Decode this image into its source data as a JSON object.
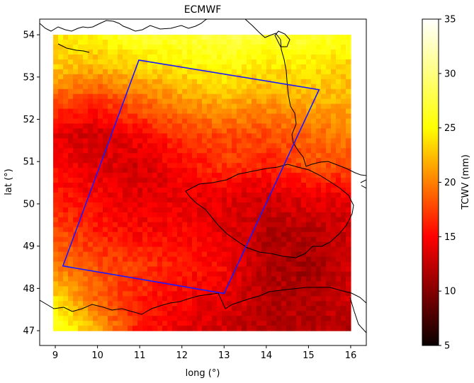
{
  "chart_data": {
    "type": "heatmap",
    "title": "ECMWF",
    "xlabel": "long (°)",
    "ylabel": "lat (°)",
    "xlim": [
      8.63,
      16.37
    ],
    "ylim": [
      46.65,
      54.37
    ],
    "data_extent": {
      "lon": [
        8.95,
        16.0
      ],
      "lat": [
        47.0,
        54.0
      ]
    },
    "x_ticks": [
      9,
      10,
      11,
      12,
      13,
      14,
      15,
      16
    ],
    "y_ticks": [
      47,
      48,
      49,
      50,
      51,
      52,
      53,
      54
    ],
    "grid": false,
    "colorbar": {
      "label": "TCWV (mm)",
      "range": [
        5,
        35
      ],
      "ticks": [
        5,
        10,
        15,
        20,
        25,
        30,
        35
      ],
      "colormap": "hot"
    },
    "field_tcwv_mm": [
      [
        24,
        25,
        27,
        27,
        28,
        27,
        27,
        26
      ],
      [
        23,
        22,
        23,
        24,
        25,
        24,
        24,
        23
      ],
      [
        18,
        17,
        19,
        21,
        22,
        21,
        22,
        22
      ],
      [
        14,
        13,
        15,
        17,
        18,
        18,
        19,
        20
      ],
      [
        15,
        14,
        13,
        15,
        17,
        16,
        18,
        18
      ],
      [
        16,
        15,
        14,
        14,
        14,
        13,
        14,
        14
      ],
      [
        18,
        16,
        15,
        15,
        14,
        12,
        12,
        13
      ],
      [
        20,
        18,
        17,
        16,
        15,
        12,
        11,
        13
      ],
      [
        24,
        19,
        16,
        15,
        14,
        12,
        12,
        13
      ],
      [
        27,
        22,
        16,
        14,
        13,
        12,
        12,
        12
      ]
    ],
    "swath_polygon": [
      {
        "lon": 10.98,
        "lat": 53.4
      },
      {
        "lon": 15.25,
        "lat": 52.7
      },
      {
        "lon": 13.0,
        "lat": 47.88
      },
      {
        "lon": 9.18,
        "lat": 48.53
      }
    ],
    "colors": {
      "swath": "#1a1aff",
      "coastline": "#000000"
    }
  }
}
